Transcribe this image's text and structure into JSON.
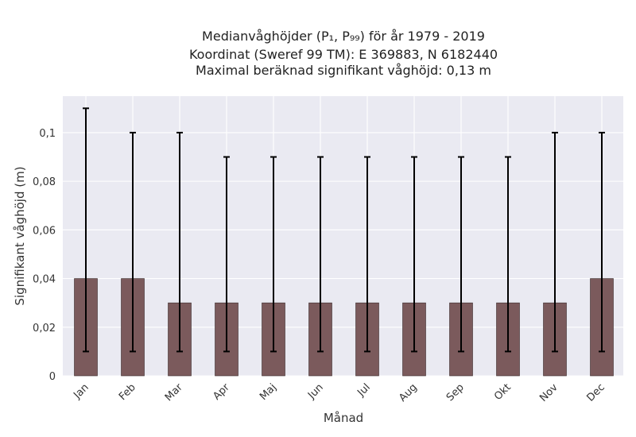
{
  "chart_data": {
    "type": "bar",
    "title_lines": [
      "Medianvåghöjder (P₁, P₉₉) för år 1979 - 2019",
      "Koordinat (Sweref 99 TM): E 369883, N 6182440",
      "Maximal beräknad signifikant våghöjd: 0,13 m"
    ],
    "xlabel": "Månad",
    "ylabel": "Signifikant våghöjd (m)",
    "categories": [
      "Jan",
      "Feb",
      "Mar",
      "Apr",
      "Maj",
      "Jun",
      "Jul",
      "Aug",
      "Sep",
      "Okt",
      "Nov",
      "Dec"
    ],
    "values": [
      0.04,
      0.04,
      0.03,
      0.03,
      0.03,
      0.03,
      0.03,
      0.03,
      0.03,
      0.03,
      0.03,
      0.04
    ],
    "error_low": [
      0.01,
      0.01,
      0.01,
      0.01,
      0.01,
      0.01,
      0.01,
      0.01,
      0.01,
      0.01,
      0.01,
      0.01
    ],
    "error_high": [
      0.11,
      0.1,
      0.1,
      0.09,
      0.09,
      0.09,
      0.09,
      0.09,
      0.09,
      0.09,
      0.1,
      0.1
    ],
    "ylim": [
      0,
      0.115
    ],
    "yticks": [
      0,
      0.02,
      0.04,
      0.06,
      0.08,
      0.1
    ],
    "ytick_labels": [
      "0",
      "0,02",
      "0,04",
      "0,06",
      "0,08",
      "0,1"
    ],
    "grid": true,
    "colors": {
      "bar": "#7b5a5c",
      "background": "#eaeaf2",
      "error": "#000000"
    }
  }
}
